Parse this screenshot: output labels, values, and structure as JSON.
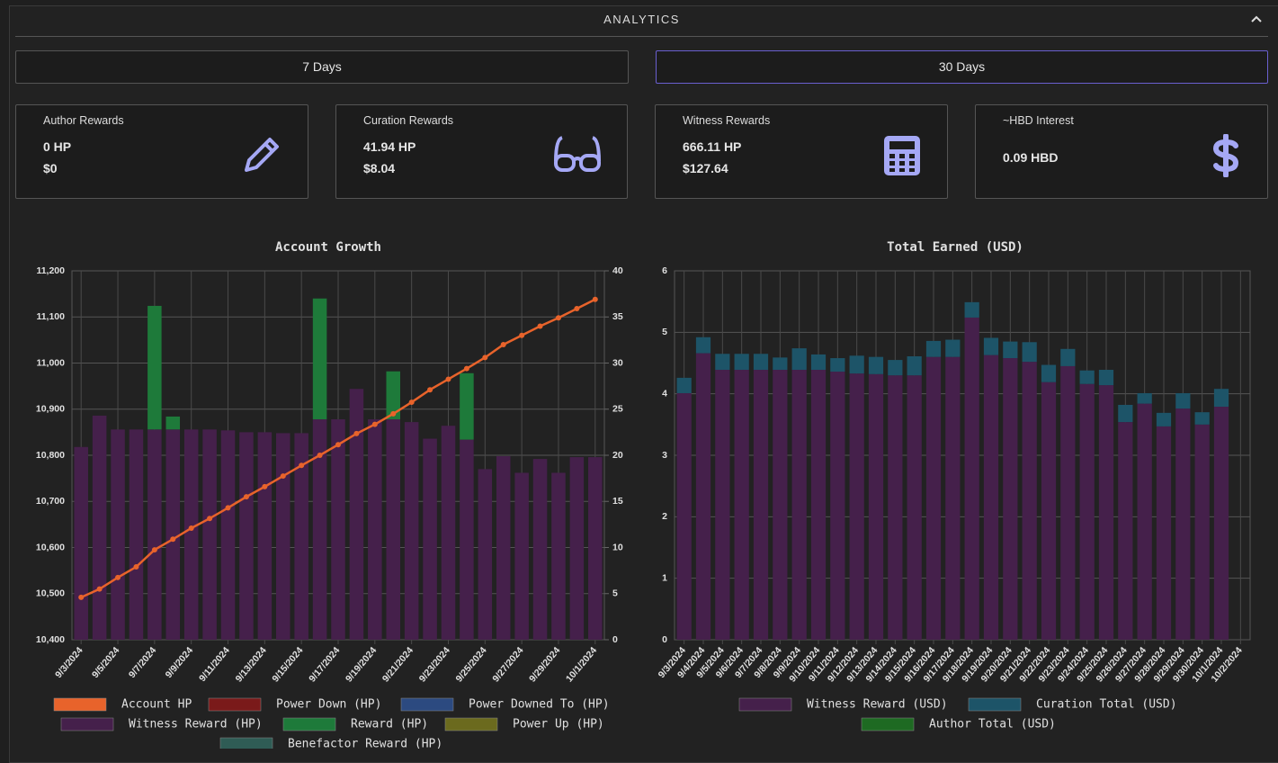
{
  "header": {
    "title": "ANALYTICS"
  },
  "tabs": [
    "7 Days",
    "30 Days"
  ],
  "cards": [
    {
      "label": "Author Rewards",
      "lines": [
        "0 HP",
        "$0"
      ]
    },
    {
      "label": "Curation Rewards",
      "lines": [
        "41.94 HP",
        "$8.04"
      ]
    },
    {
      "label": "Witness Rewards",
      "lines": [
        "666.11 HP",
        "$127.64"
      ]
    },
    {
      "label": "~HBD Interest",
      "lines": [
        "0.09 HBD"
      ]
    }
  ],
  "chart_data": [
    {
      "type": "bar",
      "title": "Account Growth",
      "stacked": true,
      "grid": true,
      "categories": [
        "9/3/2024",
        null,
        "9/5/2024",
        null,
        "9/7/2024",
        null,
        "9/9/2024",
        null,
        "9/11/2024",
        null,
        "9/13/2024",
        null,
        "9/15/2024",
        null,
        "9/17/2024",
        null,
        "9/19/2024",
        null,
        "9/21/2024",
        null,
        "9/23/2024",
        null,
        "9/25/2024",
        null,
        "9/27/2024",
        null,
        "9/29/2024",
        null,
        "10/1/2024"
      ],
      "ylim": [
        10400,
        11200
      ],
      "yticks": [
        {
          "value": 10400,
          "label": "10,400"
        },
        {
          "value": 10500,
          "label": "10,500"
        },
        {
          "value": 10600,
          "label": "10,600"
        },
        {
          "value": 10700,
          "label": "10,700"
        },
        {
          "value": 10800,
          "label": "10,800"
        },
        {
          "value": 10900,
          "label": "10,900"
        },
        {
          "value": 11000,
          "label": "11,000"
        },
        {
          "value": 11100,
          "label": "11,100"
        },
        {
          "value": 11200,
          "label": "11,200"
        }
      ],
      "y2lim": [
        0,
        40
      ],
      "y2ticks": [
        0,
        5,
        10,
        15,
        20,
        25,
        30,
        35,
        40
      ],
      "series": [
        {
          "name": "Account HP",
          "type": "line",
          "axis": "y",
          "color": "#e8632b",
          "values": [
            10492,
            10510,
            10535,
            10558,
            10595,
            10618,
            10642,
            10663,
            10686,
            10710,
            10732,
            10755,
            10778,
            10800,
            10823,
            10847,
            10867,
            10890,
            10915,
            10942,
            10965,
            10988,
            11012,
            11040,
            11060,
            11080,
            11098,
            11118,
            11138
          ]
        },
        {
          "name": "Power Down (HP)",
          "axis": "y2",
          "color": "#7a1a1a",
          "values": [
            null,
            null,
            null,
            null,
            null,
            null,
            null,
            null,
            null,
            null,
            null,
            null,
            null,
            null,
            null,
            null,
            null,
            null,
            null,
            null,
            null,
            null,
            null,
            null,
            null,
            null,
            null,
            null,
            null
          ]
        },
        {
          "name": "Power Downed To (HP)",
          "axis": "y2",
          "color": "#2c4a80",
          "values": [
            null,
            null,
            null,
            null,
            null,
            null,
            null,
            null,
            null,
            null,
            null,
            null,
            null,
            null,
            null,
            null,
            null,
            null,
            null,
            null,
            null,
            null,
            null,
            null,
            null,
            null,
            null,
            null,
            null
          ]
        },
        {
          "name": "Witness Reward (HP)",
          "axis": "y2",
          "color": "#45204b",
          "values": [
            20.9,
            24.3,
            22.8,
            22.8,
            22.8,
            22.8,
            22.8,
            22.8,
            22.7,
            22.5,
            22.5,
            22.4,
            22.4,
            23.9,
            23.9,
            27.2,
            23.9,
            23.9,
            23.6,
            21.8,
            23.2,
            21.7,
            18.5,
            19.9,
            18.1,
            19.6,
            18.1,
            19.8,
            19.8
          ]
        },
        {
          "name": "Reward (HP)",
          "axis": "y2",
          "color": "#1e7a3a",
          "values": [
            0,
            0,
            0,
            0,
            13.4,
            1.4,
            0,
            0,
            0,
            0,
            0,
            0,
            0,
            13.1,
            0,
            0,
            0,
            5.2,
            0,
            0,
            0,
            7.2,
            0,
            0,
            0,
            0,
            0,
            0,
            0
          ]
        },
        {
          "name": "Power Up (HP)",
          "axis": "y2",
          "color": "#6b6a1e",
          "values": [
            null,
            null,
            null,
            null,
            null,
            null,
            null,
            null,
            null,
            null,
            null,
            null,
            null,
            null,
            null,
            null,
            null,
            null,
            null,
            null,
            null,
            null,
            null,
            null,
            null,
            null,
            null,
            null,
            null
          ]
        },
        {
          "name": "Benefactor Reward (HP)",
          "axis": "y2",
          "color": "#2f5c55",
          "values": [
            null,
            null,
            null,
            null,
            null,
            null,
            null,
            null,
            null,
            null,
            null,
            null,
            null,
            null,
            null,
            null,
            null,
            null,
            null,
            null,
            null,
            null,
            null,
            null,
            null,
            null,
            null,
            null,
            null
          ]
        }
      ]
    },
    {
      "type": "bar",
      "title": "Total Earned (USD)",
      "stacked": true,
      "grid": true,
      "categories": [
        "9/3/2024",
        "9/4/2024",
        "9/5/2024",
        "9/6/2024",
        "9/7/2024",
        "9/8/2024",
        "9/9/2024",
        "9/10/2024",
        "9/11/2024",
        "9/12/2024",
        "9/13/2024",
        "9/14/2024",
        "9/15/2024",
        "9/16/2024",
        "9/17/2024",
        "9/18/2024",
        "9/19/2024",
        "9/20/2024",
        "9/21/2024",
        "9/22/2024",
        "9/23/2024",
        "9/24/2024",
        "9/25/2024",
        "9/26/2024",
        "9/27/2024",
        "9/28/2024",
        "9/29/2024",
        "9/30/2024",
        "10/1/2024",
        "10/2/2024"
      ],
      "ylim": [
        0,
        6
      ],
      "yticks": [
        0,
        1,
        2,
        3,
        4,
        5,
        6
      ],
      "series": [
        {
          "name": "Witness Reward (USD)",
          "axis": "y",
          "color": "#45204b",
          "values": [
            4.01,
            4.66,
            4.39,
            4.39,
            4.39,
            4.39,
            4.39,
            4.39,
            4.36,
            4.33,
            4.32,
            4.3,
            4.3,
            4.6,
            4.6,
            5.24,
            4.63,
            4.58,
            4.52,
            4.19,
            4.45,
            4.16,
            4.14,
            3.54,
            3.84,
            3.47,
            3.76,
            3.5,
            3.79,
            null
          ]
        },
        {
          "name": "Curation Total (USD)",
          "axis": "y",
          "color": "#1d5468",
          "values": [
            0.25,
            0.26,
            0.26,
            0.26,
            0.26,
            0.2,
            0.35,
            0.25,
            0.22,
            0.29,
            0.28,
            0.25,
            0.31,
            0.26,
            0.28,
            0.25,
            0.28,
            0.27,
            0.32,
            0.28,
            0.28,
            0.22,
            0.25,
            0.28,
            0.17,
            0.22,
            0.25,
            0.2,
            0.29,
            null
          ]
        },
        {
          "name": "Author Total (USD)",
          "axis": "y",
          "color": "#1e6a22",
          "values": [
            null,
            null,
            null,
            null,
            null,
            null,
            null,
            null,
            null,
            null,
            null,
            null,
            null,
            null,
            null,
            null,
            null,
            null,
            null,
            null,
            null,
            null,
            null,
            null,
            null,
            null,
            null,
            null,
            null,
            null
          ]
        }
      ]
    }
  ]
}
